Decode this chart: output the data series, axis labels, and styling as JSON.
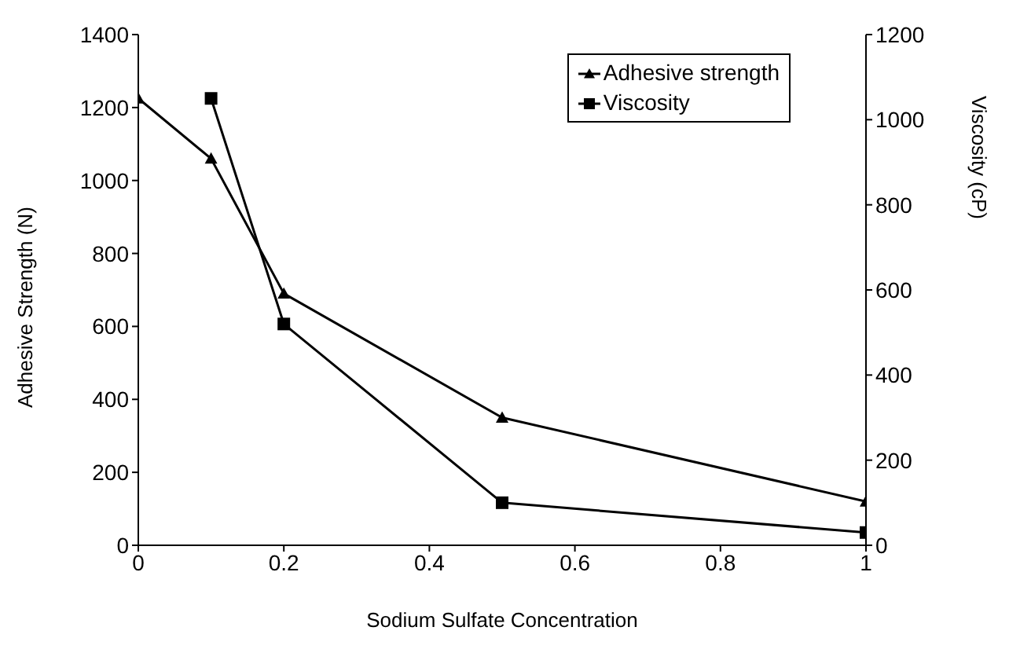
{
  "chart_data": {
    "type": "line",
    "xlabel": "Sodium Sulfate Concentration",
    "ylabel": "Adhesive Strength (N)",
    "y2label": "Viscosity (cP)",
    "xlim": [
      0,
      1
    ],
    "xticks": [
      0,
      0.2,
      0.4,
      0.6,
      0.8,
      1
    ],
    "ylim": [
      0,
      1400
    ],
    "yticks": [
      0,
      200,
      400,
      600,
      800,
      1000,
      1200,
      1400
    ],
    "y2lim": [
      0,
      1200
    ],
    "y2ticks": [
      0,
      200,
      400,
      600,
      800,
      1000,
      1200
    ],
    "grid": false,
    "legend": "top right",
    "line_style": "solid",
    "series": [
      {
        "name": "Adhesive strength",
        "color": "#000000",
        "marker": "triangle",
        "x": [
          0,
          0.1,
          0.2,
          0.5,
          1
        ],
        "values": [
          1225,
          1060,
          690,
          350,
          120
        ]
      },
      {
        "name": "Viscosity",
        "color": "#000000",
        "marker": "square",
        "axis": "y2",
        "x": [
          0.1,
          0.2,
          0.5,
          1
        ],
        "values": [
          1050,
          520,
          100,
          30
        ]
      }
    ]
  }
}
